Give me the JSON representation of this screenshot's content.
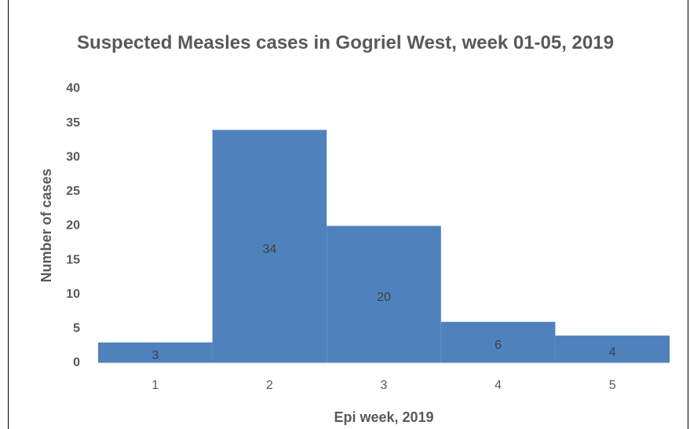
{
  "chart_data": {
    "type": "bar",
    "title": "Suspected Measles cases in Gogriel West, week 01-05, 2019",
    "x_label": "Epi week, 2019",
    "y_label": "Number of cases",
    "categories": [
      "1",
      "2",
      "3",
      "4",
      "5"
    ],
    "values": [
      3,
      34,
      20,
      6,
      4
    ],
    "color": "#4f81bd",
    "ylim": [
      0,
      40
    ],
    "yticks": [
      0,
      5,
      10,
      15,
      20,
      25,
      30,
      35,
      40
    ],
    "grid": false
  }
}
